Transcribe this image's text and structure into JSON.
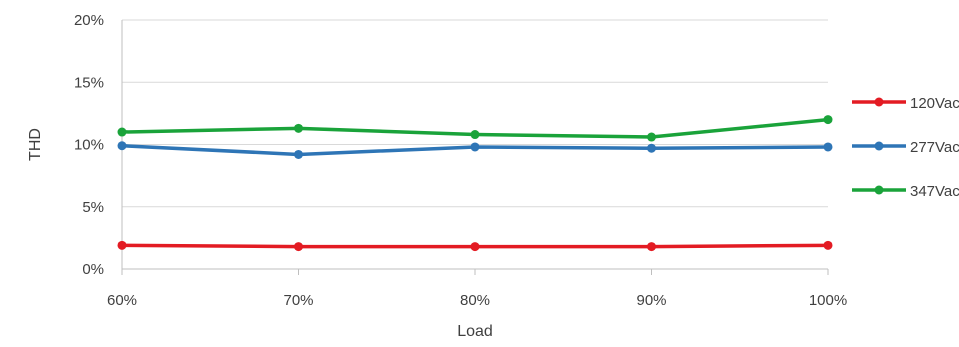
{
  "chart_data": {
    "type": "line",
    "xlabel": "Load",
    "ylabel": "THD",
    "categories": [
      "60%",
      "70%",
      "80%",
      "90%",
      "100%"
    ],
    "y_ticks": [
      "0%",
      "5%",
      "10%",
      "15%",
      "20%"
    ],
    "ylim": [
      0,
      20
    ],
    "grid": true,
    "legend_position": "right",
    "series": [
      {
        "name": "120Vac",
        "color": "#e31b23",
        "values": [
          1.9,
          1.8,
          1.8,
          1.8,
          1.9
        ]
      },
      {
        "name": "277Vac",
        "color": "#2e75b6",
        "values": [
          9.9,
          9.2,
          9.8,
          9.7,
          9.8
        ]
      },
      {
        "name": "347Vac",
        "color": "#1aa33a",
        "values": [
          11.0,
          11.3,
          10.8,
          10.6,
          12.0
        ]
      }
    ]
  }
}
